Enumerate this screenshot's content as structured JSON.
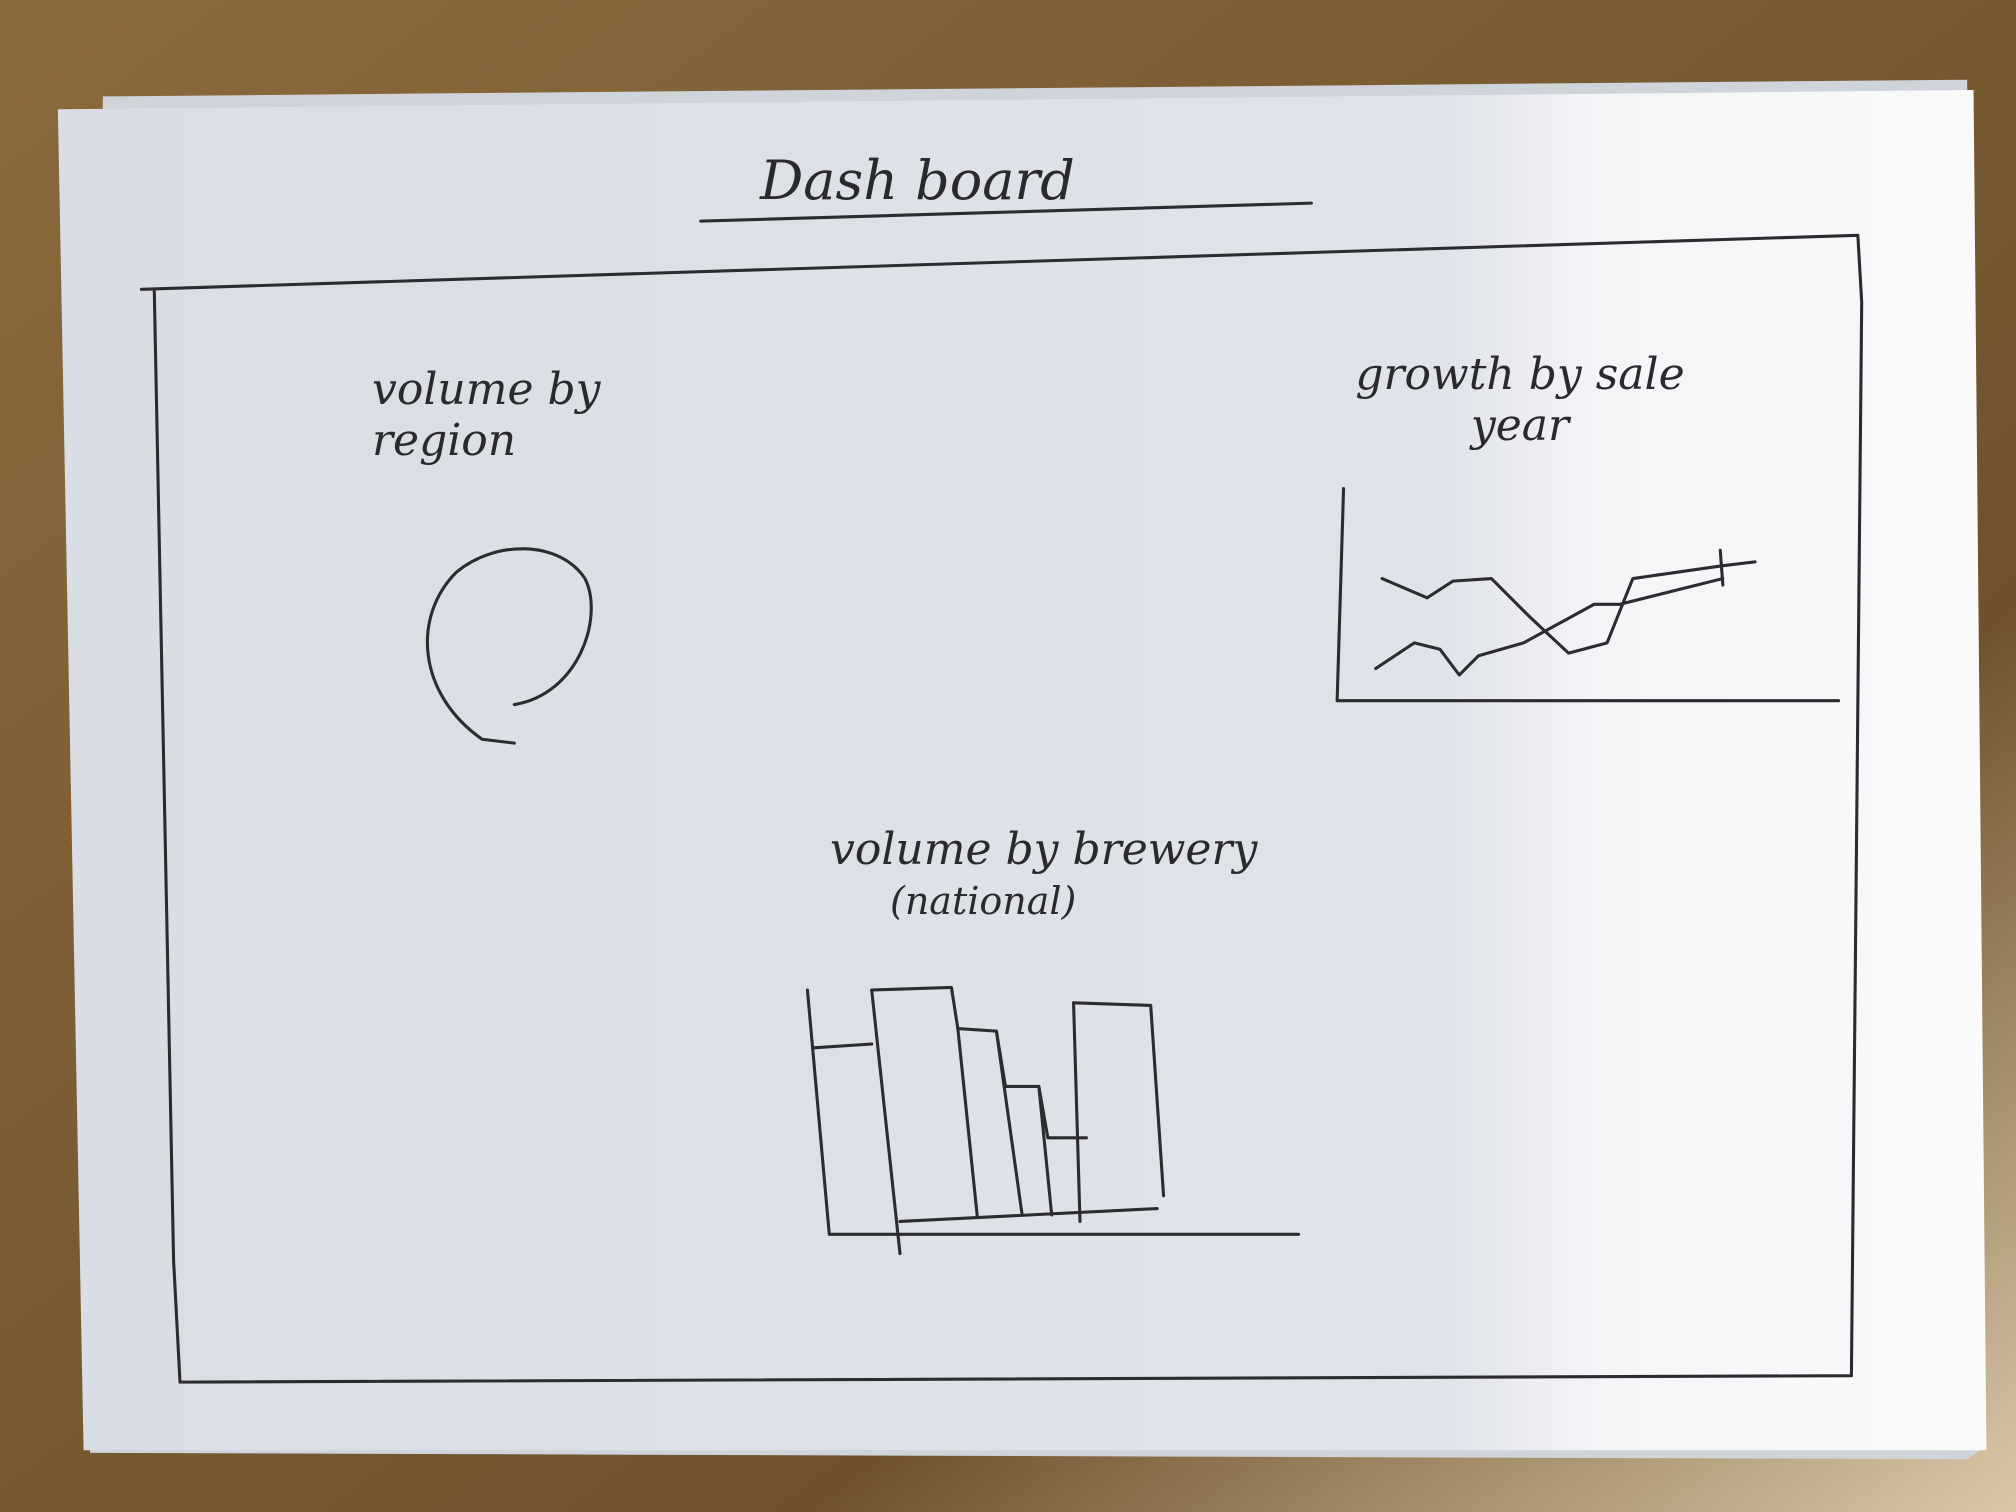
{
  "header": {
    "title": "Dash board"
  },
  "panels": [
    {
      "title": "volume by region"
    },
    {
      "title": "growth by sale year"
    },
    {
      "title": "volume by brewery",
      "subtitle": "(national)"
    }
  ]
}
